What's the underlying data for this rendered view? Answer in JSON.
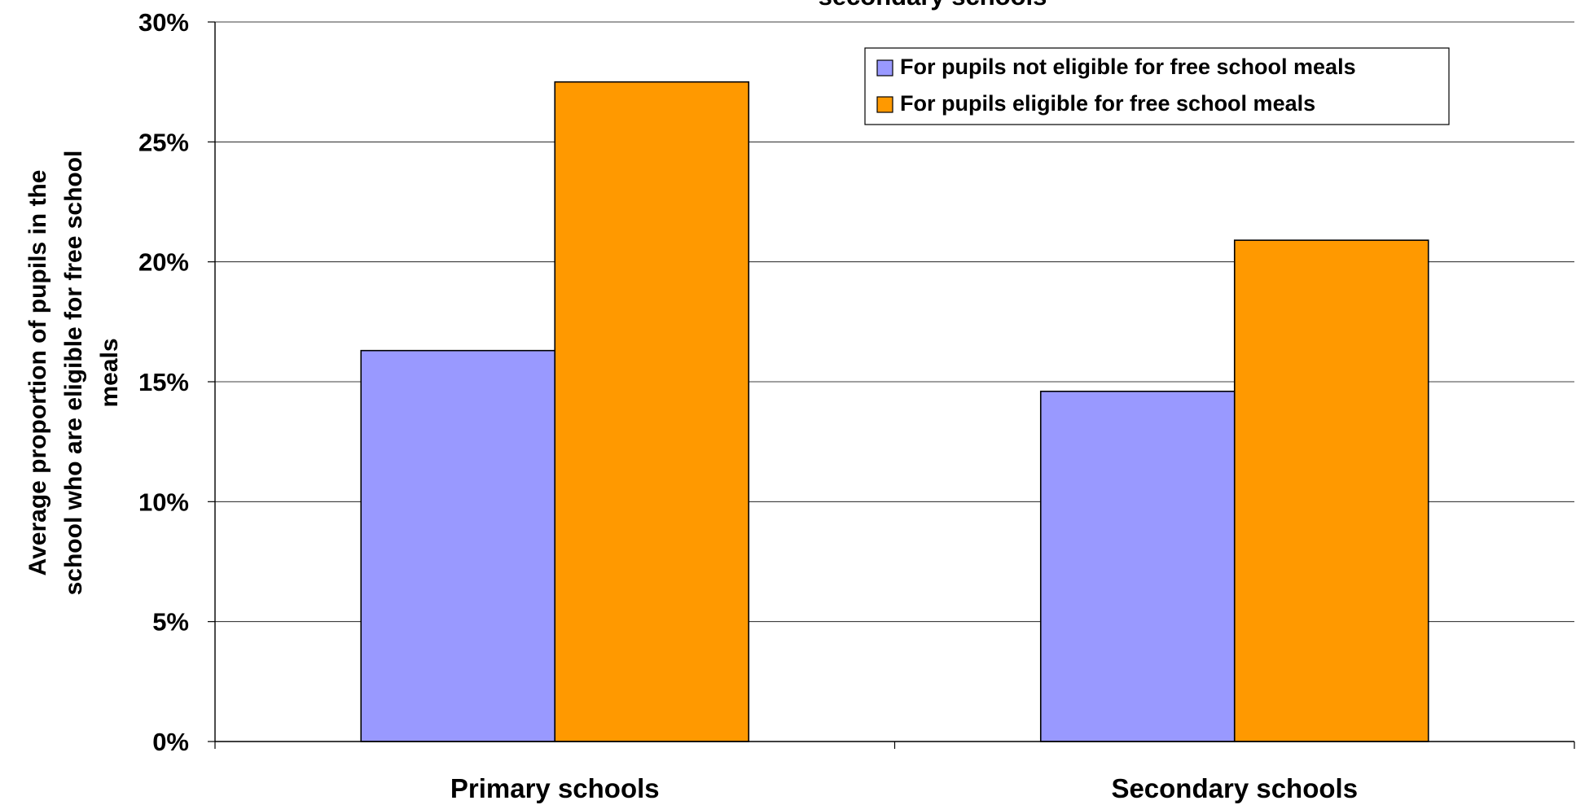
{
  "chart_data": {
    "type": "bar",
    "title": "secondary schools",
    "ylabel_lines": [
      "Average proportion of pupils in the",
      "school who are eligible for free school",
      "meals"
    ],
    "categories": [
      "Primary schools",
      "Secondary schools"
    ],
    "series": [
      {
        "name": "For pupils not eligible for free school meals",
        "color": "#9999FF",
        "values": [
          16.3,
          14.6
        ]
      },
      {
        "name": "For pupils eligible for free school meals",
        "color": "#FF9900",
        "values": [
          27.5,
          20.9
        ]
      }
    ],
    "ylim": [
      0,
      30
    ],
    "yticks": [
      0,
      5,
      10,
      15,
      20,
      25,
      30
    ],
    "ytick_labels": [
      "0%",
      "5%",
      "10%",
      "15%",
      "20%",
      "25%",
      "30%"
    ],
    "grid": true,
    "legend_position": "top-right"
  }
}
